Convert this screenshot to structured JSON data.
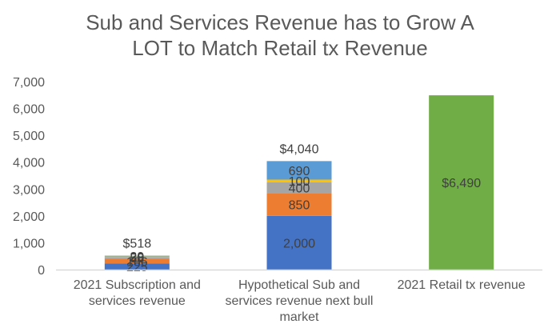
{
  "chart_data": {
    "type": "bar",
    "stacked": true,
    "title": [
      "Sub and Services Revenue has to Grow A",
      "LOT to Match Retail tx Revenue"
    ],
    "xlabel": "",
    "ylabel": "",
    "ylim": [
      0,
      7000
    ],
    "yticks": [
      0,
      1000,
      2000,
      3000,
      4000,
      5000,
      6000,
      7000
    ],
    "ytick_labels": [
      "0",
      "1,000",
      "2,000",
      "3,000",
      "4,000",
      "5,000",
      "6,000",
      "7,000"
    ],
    "grid": false,
    "legend": "none",
    "categories": [
      "2021 Subscription and services revenue",
      "Hypothetical Sub and services revenue next bull market",
      "2021 Retail tx revenue"
    ],
    "category_lines": [
      [
        "2021 Subscription and",
        "services revenue"
      ],
      [
        "Hypothetical Sub and",
        "services revenue next bull",
        "market"
      ],
      [
        "2021 Retail tx revenue"
      ]
    ],
    "series": [
      {
        "name": "segment-1",
        "color": "#4472C4",
        "values": [
          225,
          2000,
          0
        ],
        "labels": [
          "225",
          "2,000",
          ""
        ]
      },
      {
        "name": "segment-2",
        "color": "#ED7D31",
        "values": [
          186,
          850,
          0
        ],
        "labels": [
          "186",
          "850",
          ""
        ]
      },
      {
        "name": "segment-3",
        "color": "#A5A5A5",
        "values": [
          58,
          400,
          0
        ],
        "labels": [
          "58",
          "400",
          ""
        ]
      },
      {
        "name": "segment-4",
        "color": "#FFC000",
        "values": [
          20,
          100,
          0
        ],
        "labels": [
          "20",
          "100",
          ""
        ]
      },
      {
        "name": "segment-5",
        "color": "#5B9BD5",
        "values": [
          29,
          690,
          0
        ],
        "labels": [
          "29",
          "690",
          ""
        ]
      },
      {
        "name": "retail",
        "color": "#70AD47",
        "values": [
          0,
          0,
          6490
        ],
        "labels": [
          "",
          "",
          "$6,490"
        ]
      }
    ],
    "totals": [
      518,
      4040,
      6490
    ],
    "total_labels": [
      "$518",
      "$4,040",
      ""
    ]
  }
}
